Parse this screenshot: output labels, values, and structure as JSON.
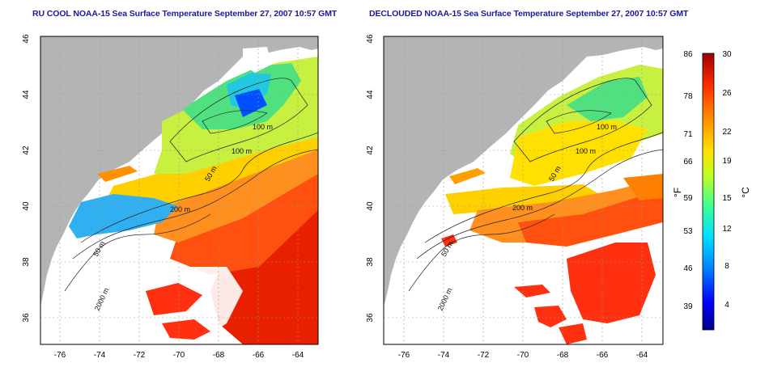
{
  "panels": [
    {
      "title": "RU COOL NOAA-15 Sea Surface Temperature September 27, 2007 10:57 GMT",
      "depth_labels": [
        "100 m",
        "100 m",
        "50 m",
        "200 m",
        "50 m",
        "2000 m"
      ]
    },
    {
      "title": "DECLOUDED NOAA-15 Sea Surface Temperature September 27, 2007 10:57 GMT",
      "depth_labels": [
        "100 m",
        "100 m",
        "50 m",
        "200 m",
        "50 m",
        "2000 m"
      ]
    }
  ],
  "x_ticks": [
    "-76",
    "-74",
    "-72",
    "-70",
    "-68",
    "-66",
    "-64"
  ],
  "y_ticks": [
    "46",
    "44",
    "42",
    "40",
    "38",
    "36"
  ],
  "colorbar": {
    "f_ticks": [
      "86",
      "78",
      "71",
      "66",
      "59",
      "53",
      "46",
      "39"
    ],
    "c_ticks": [
      "30",
      "26",
      "22",
      "19",
      "15",
      "12",
      "8",
      "4"
    ],
    "f_label": "°F",
    "c_label": "°C",
    "colors": [
      "#00008b",
      "#0000ff",
      "#0080ff",
      "#00e0ff",
      "#40ff90",
      "#c0ff20",
      "#ffe000",
      "#ff9000",
      "#ff3000",
      "#a00000"
    ]
  },
  "map_colors": {
    "land": "#b4b4b4",
    "water_bg": "#ffffff"
  }
}
